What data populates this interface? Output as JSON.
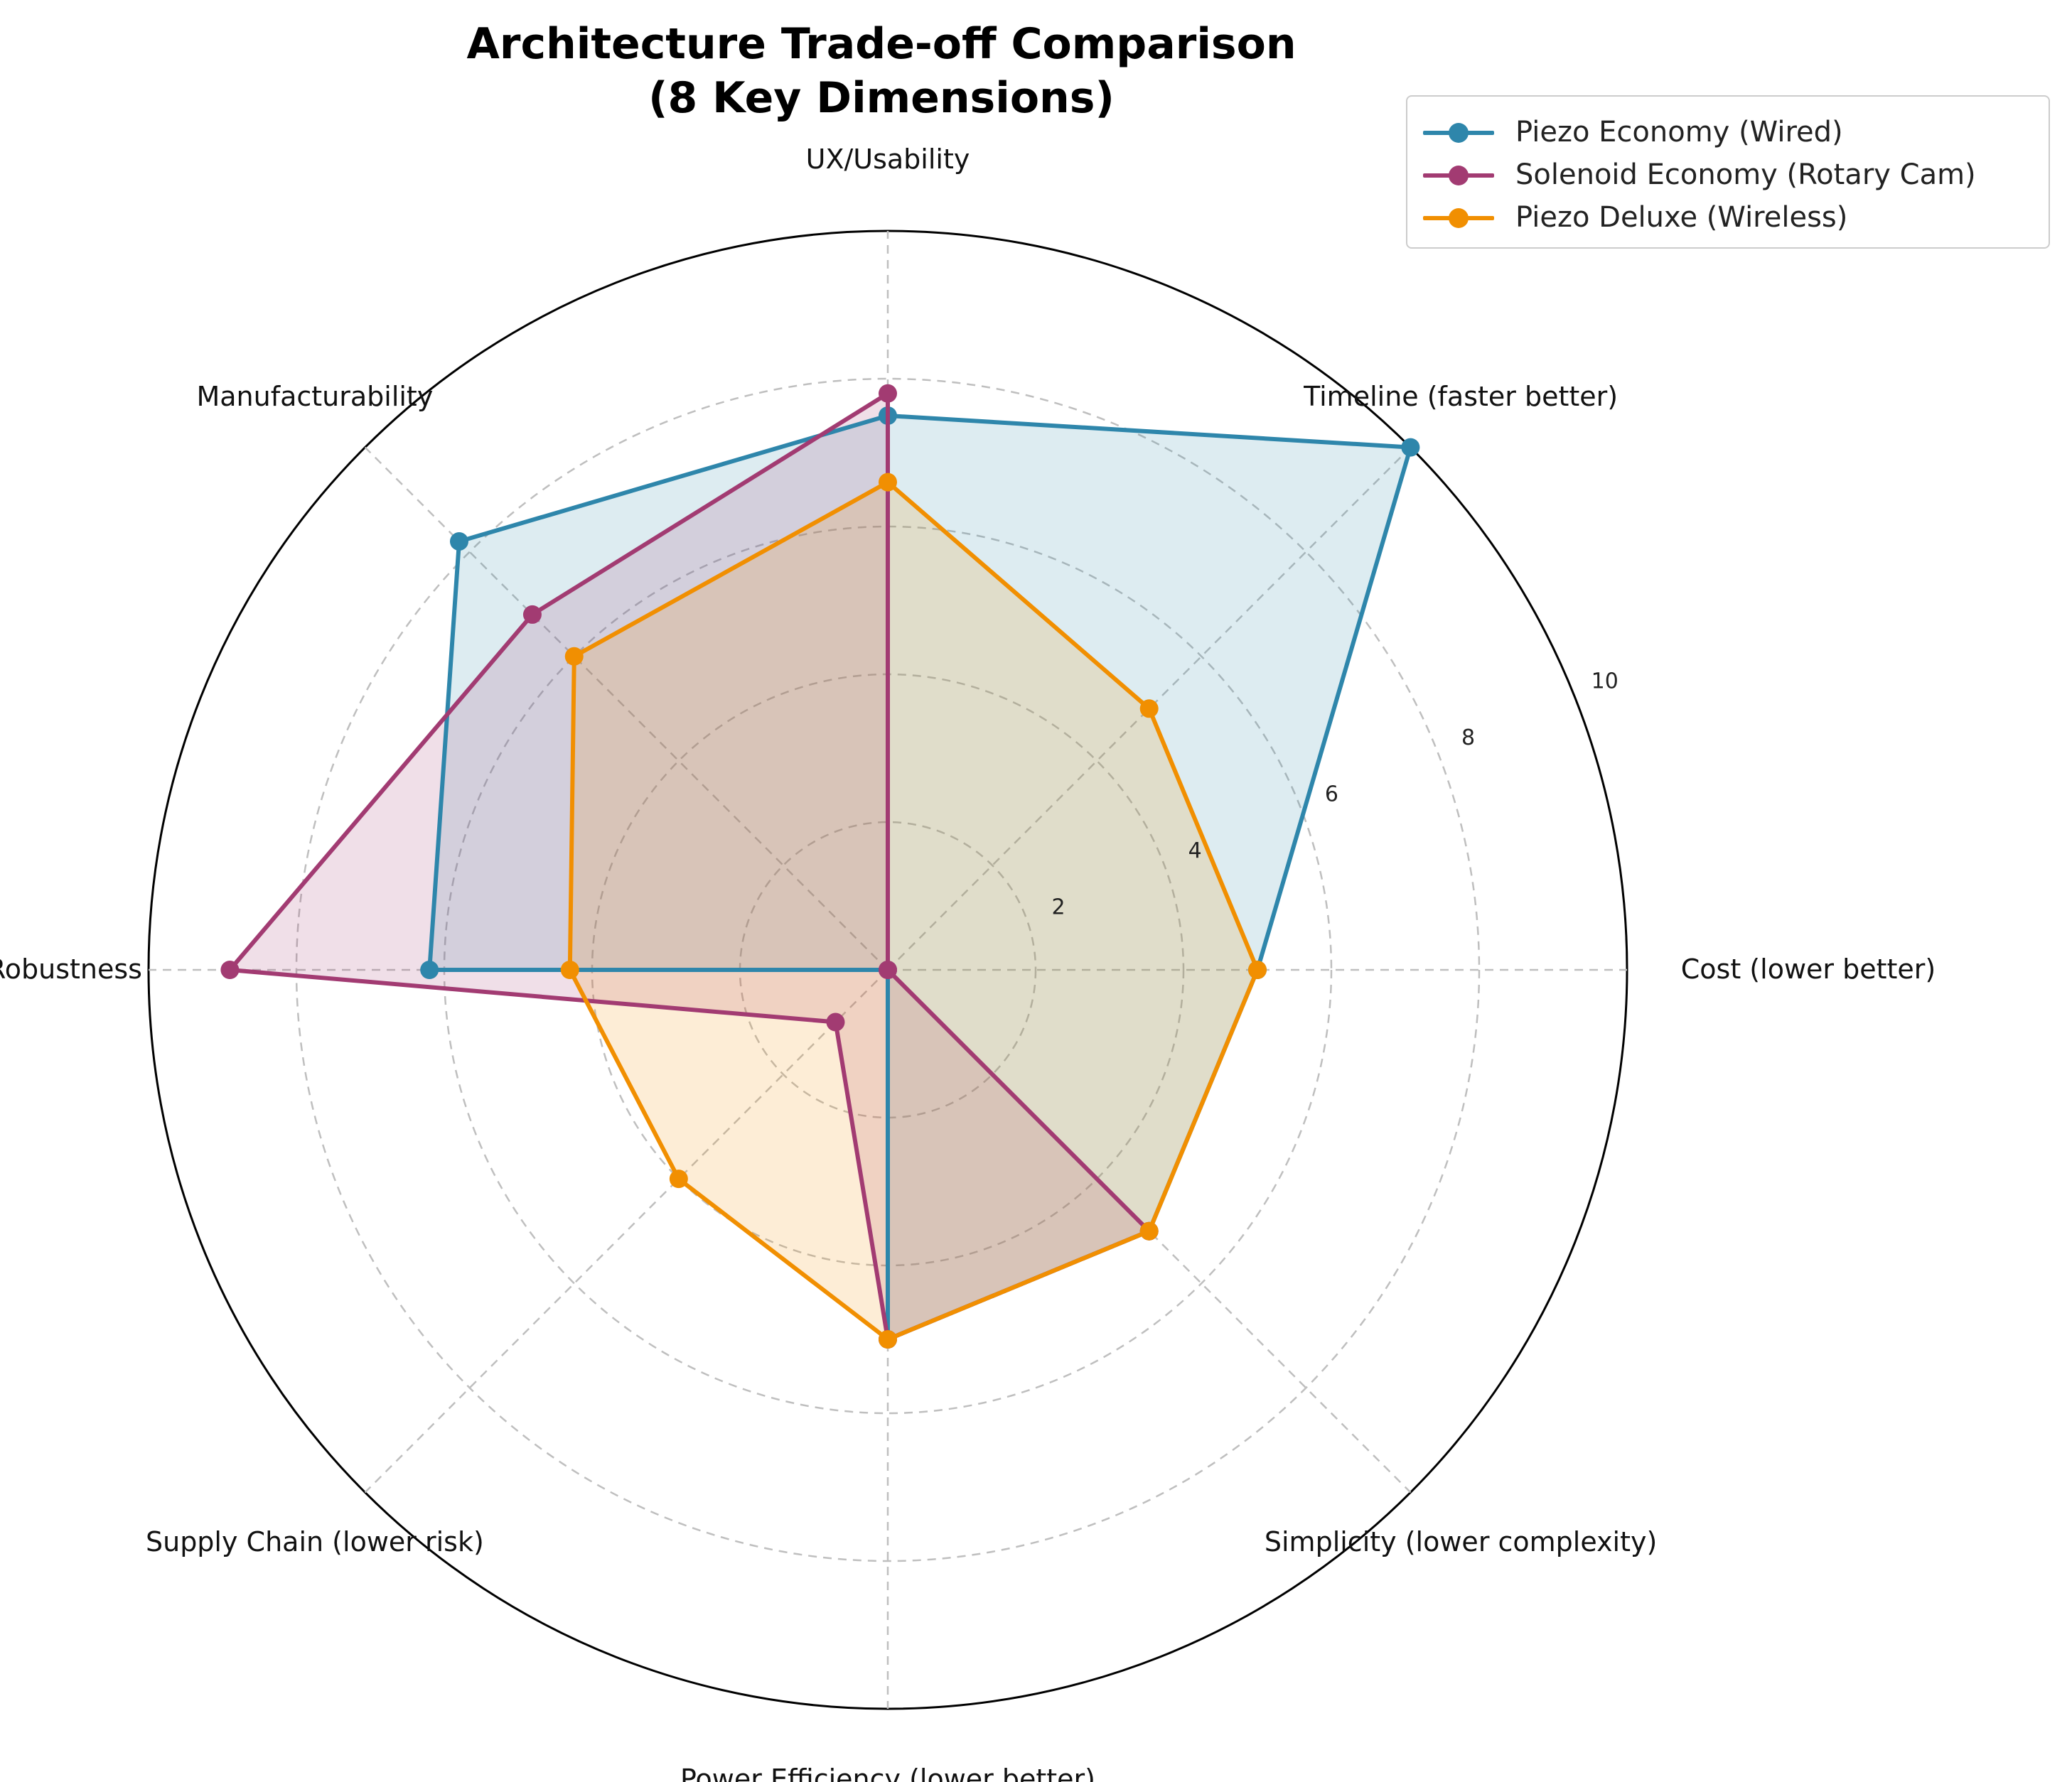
{
  "title_line1": "Architecture Trade-off Comparison",
  "title_line2": "(8 Key Dimensions)",
  "chart_data": {
    "type": "radar",
    "title": "Architecture Trade-off Comparison\n(8 Key Dimensions)",
    "axes": [
      "Cost (lower better)",
      "Timeline (faster better)",
      "UX/Usability",
      "Manufacturability",
      "Robustness",
      "Supply Chain (lower risk)",
      "Power Efficiency (lower better)",
      "Simplicity (lower complexity)"
    ],
    "r_ticks": [
      "2",
      "4",
      "6",
      "8",
      "10"
    ],
    "r_range": [
      0,
      10
    ],
    "grid": true,
    "legend_position": "top-right",
    "series": [
      {
        "name": "Piezo Economy (Wired)",
        "color": "#2e86ab",
        "values": [
          5,
          10,
          7.5,
          8.2,
          6.2,
          0,
          5,
          5
        ]
      },
      {
        "name": "Solenoid Economy (Rotary Cam)",
        "color": "#a23b72",
        "values": [
          0,
          0,
          7.8,
          6.8,
          8.9,
          1,
          5,
          5
        ]
      },
      {
        "name": "Piezo Deluxe (Wireless)",
        "color": "#f18f01",
        "values": [
          5,
          5,
          6.6,
          6,
          4.3,
          4,
          5,
          5
        ]
      }
    ]
  }
}
